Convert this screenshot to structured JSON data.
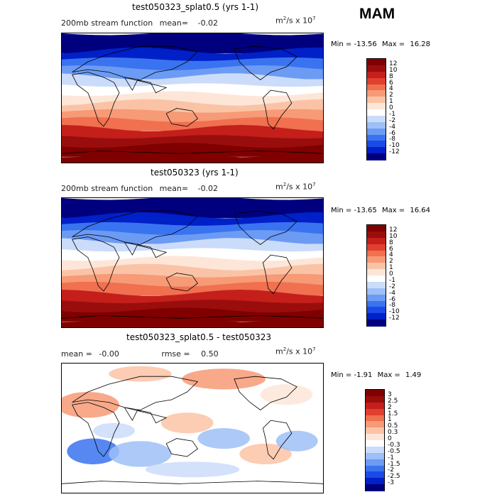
{
  "season": "MAM",
  "units_base": "m",
  "units_sup1": "2",
  "units_mid": "/s x 10",
  "units_sup2": "7",
  "colors": {
    "abs_levels": [
      "#00007f",
      "#0020c8",
      "#1a4be8",
      "#3a73f0",
      "#6c9bf4",
      "#9ebff7",
      "#cbdcfa",
      "#ffffff",
      "#fde6d8",
      "#fbc3a6",
      "#f79a76",
      "#f07050",
      "#e04030",
      "#c41f1a",
      "#9a0d0d",
      "#800000"
    ],
    "diff_levels": [
      "#00007f",
      "#0020c8",
      "#1a4be8",
      "#3a73f0",
      "#6c9bf4",
      "#9ebff7",
      "#cbdcfa",
      "#ffffff",
      "#fde6d8",
      "#fbc3a6",
      "#f79a76",
      "#f07050",
      "#e04030",
      "#c41f1a",
      "#9a0d0d",
      "#800000"
    ]
  },
  "chart_data": [
    {
      "type": "heatmap",
      "title": "test050323_splat0.5 (yrs 1-1)",
      "field_label": "200mb stream function",
      "mean_label": "mean=",
      "mean_value": "-0.02",
      "min_label": "Min =",
      "min_value": "-13.56",
      "max_label": "Max =",
      "max_value": "16.28",
      "colorbar_ticks": [
        "12",
        "10",
        "8",
        "6",
        "4",
        "2",
        "1",
        "0",
        "-1",
        "-2",
        "-4",
        "-6",
        "-8",
        "-10",
        "-12"
      ],
      "lat_profile": [
        -13,
        -12,
        -10,
        -7,
        -4,
        -1.5,
        -0.5,
        0.5,
        1.5,
        3,
        6,
        9,
        12,
        14,
        16
      ]
    },
    {
      "type": "heatmap",
      "title": "test050323 (yrs 1-1)",
      "field_label": "200mb stream function",
      "mean_label": "mean=",
      "mean_value": "-0.02",
      "min_label": "Min =",
      "min_value": "-13.65",
      "max_label": "Max =",
      "max_value": "16.64",
      "colorbar_ticks": [
        "12",
        "10",
        "8",
        "6",
        "4",
        "2",
        "1",
        "0",
        "-1",
        "-2",
        "-4",
        "-6",
        "-8",
        "-10",
        "-12"
      ],
      "lat_profile": [
        -13,
        -12,
        -10,
        -7,
        -4,
        -1.5,
        -0.5,
        0.5,
        1.5,
        3,
        6,
        9,
        12,
        14,
        16
      ]
    },
    {
      "type": "heatmap",
      "title": "test050323_splat0.5 - test050323",
      "mean_label": "mean =",
      "mean_value": "-0.00",
      "rmse_label": "rmse =",
      "rmse_value": "0.50",
      "min_label": "Min =",
      "min_value": "-1.91",
      "max_label": "Max =",
      "max_value": "1.49",
      "colorbar_ticks": [
        "3",
        "2.5",
        "2",
        "1.5",
        "1",
        "0.5",
        "0.3",
        "0",
        "-0.3",
        "-0.5",
        "-1",
        "-1.5",
        "-2",
        "-2.5",
        "-3"
      ]
    }
  ]
}
